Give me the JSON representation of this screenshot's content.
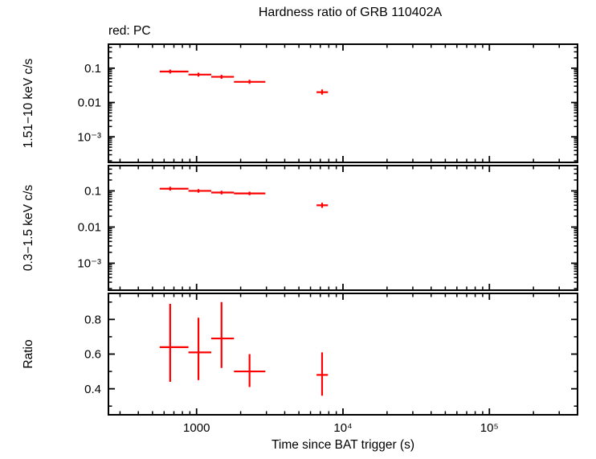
{
  "chart_data": {
    "type": "scatter",
    "subtype": "errorbar-multi-panel",
    "title": "Hardness ratio of GRB 110402A",
    "annotation": "red: PC",
    "xlabel": "Time since BAT trigger (s)",
    "x_scale": "log",
    "x_range": [
      250,
      400000
    ],
    "x_ticks": [
      {
        "value": 1000,
        "label": "1000"
      },
      {
        "value": 10000,
        "label": "10⁴"
      },
      {
        "value": 100000,
        "label": "10⁵"
      }
    ],
    "series_color": "#ff0000",
    "frame_color": "#000000",
    "legend_position": "none",
    "grid": false,
    "panels": [
      {
        "ylabel": "1.51−10 keV c/s",
        "y_scale": "log",
        "y_range": [
          0.00018,
          0.5
        ],
        "y_ticks": [
          {
            "value": 0.1,
            "label": "0.1"
          },
          {
            "value": 0.01,
            "label": "0.01"
          },
          {
            "value": 0.001,
            "label": "10⁻³"
          }
        ],
        "points": [
          {
            "x": 660,
            "x_lo": 560,
            "x_hi": 880,
            "y": 0.08,
            "y_lo": 0.07,
            "y_hi": 0.091
          },
          {
            "x": 1030,
            "x_lo": 880,
            "x_hi": 1260,
            "y": 0.065,
            "y_lo": 0.057,
            "y_hi": 0.074
          },
          {
            "x": 1480,
            "x_lo": 1260,
            "x_hi": 1800,
            "y": 0.056,
            "y_lo": 0.049,
            "y_hi": 0.064
          },
          {
            "x": 2300,
            "x_lo": 1800,
            "x_hi": 2950,
            "y": 0.04,
            "y_lo": 0.035,
            "y_hi": 0.046
          },
          {
            "x": 7200,
            "x_lo": 6600,
            "x_hi": 7900,
            "y": 0.02,
            "y_lo": 0.017,
            "y_hi": 0.024
          }
        ]
      },
      {
        "ylabel": "0.3−1.5 keV c/s",
        "y_scale": "log",
        "y_range": [
          0.00018,
          0.5
        ],
        "y_ticks": [
          {
            "value": 0.1,
            "label": "0.1"
          },
          {
            "value": 0.01,
            "label": "0.01"
          },
          {
            "value": 0.001,
            "label": "10⁻³"
          }
        ],
        "points": [
          {
            "x": 660,
            "x_lo": 560,
            "x_hi": 880,
            "y": 0.115,
            "y_lo": 0.102,
            "y_hi": 0.13
          },
          {
            "x": 1030,
            "x_lo": 880,
            "x_hi": 1260,
            "y": 0.1,
            "y_lo": 0.089,
            "y_hi": 0.112
          },
          {
            "x": 1480,
            "x_lo": 1260,
            "x_hi": 1800,
            "y": 0.09,
            "y_lo": 0.08,
            "y_hi": 0.101
          },
          {
            "x": 2300,
            "x_lo": 1800,
            "x_hi": 2950,
            "y": 0.085,
            "y_lo": 0.076,
            "y_hi": 0.095
          },
          {
            "x": 7200,
            "x_lo": 6600,
            "x_hi": 7900,
            "y": 0.04,
            "y_lo": 0.034,
            "y_hi": 0.047
          }
        ]
      },
      {
        "ylabel": "Ratio",
        "y_scale": "linear",
        "y_range": [
          0.25,
          0.95
        ],
        "y_ticks": [
          {
            "value": 0.8,
            "label": "0.8"
          },
          {
            "value": 0.6,
            "label": "0.6"
          },
          {
            "value": 0.4,
            "label": "0.4"
          }
        ],
        "points": [
          {
            "x": 660,
            "x_lo": 560,
            "x_hi": 880,
            "y": 0.64,
            "y_lo": 0.44,
            "y_hi": 0.89
          },
          {
            "x": 1030,
            "x_lo": 880,
            "x_hi": 1260,
            "y": 0.61,
            "y_lo": 0.45,
            "y_hi": 0.81
          },
          {
            "x": 1480,
            "x_lo": 1260,
            "x_hi": 1800,
            "y": 0.69,
            "y_lo": 0.52,
            "y_hi": 0.9
          },
          {
            "x": 2300,
            "x_lo": 1800,
            "x_hi": 2950,
            "y": 0.5,
            "y_lo": 0.41,
            "y_hi": 0.6
          },
          {
            "x": 7200,
            "x_lo": 6600,
            "x_hi": 7900,
            "y": 0.48,
            "y_lo": 0.36,
            "y_hi": 0.61
          }
        ]
      }
    ]
  }
}
